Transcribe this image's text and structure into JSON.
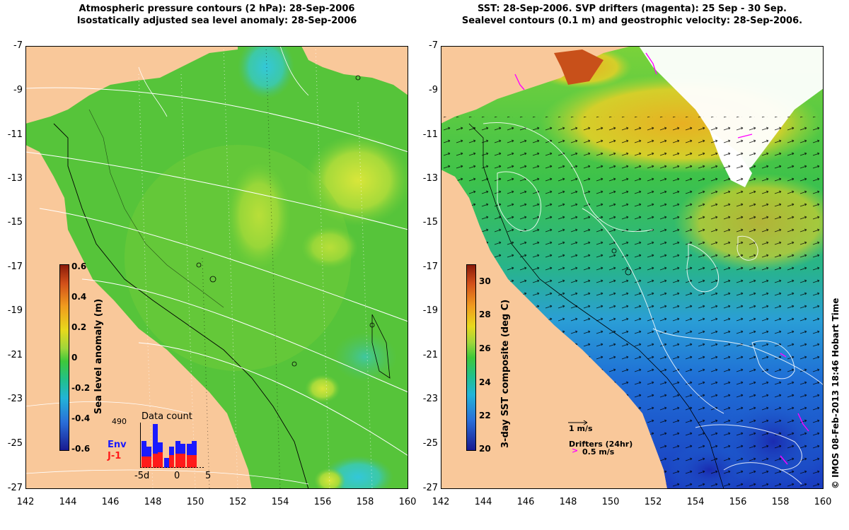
{
  "left_panel": {
    "title_line1": "Atmospheric pressure contours (2 hPa): 28-Sep-2006",
    "title_line2": "Isostatically adjusted sea level anomaly: 28-Sep-2006",
    "y_ticks": [
      "-7",
      "-9",
      "-11",
      "-13",
      "-15",
      "-17",
      "-19",
      "-21",
      "-23",
      "-25",
      "-27"
    ],
    "x_ticks": [
      "142",
      "144",
      "146",
      "148",
      "150",
      "152",
      "154",
      "156",
      "158",
      "160"
    ],
    "colorbar": {
      "label": "Sea level anomaly (m)",
      "ticks": [
        "0.6",
        "0.4",
        "0.2",
        "0",
        "-0.2",
        "-0.4",
        "-0.6"
      ],
      "range": [
        -0.6,
        0.6
      ]
    },
    "data_count": {
      "title": "Data count",
      "max_label": "490",
      "series": [
        {
          "name": "Env",
          "color": "#1a1aff"
        },
        {
          "name": "J-1",
          "color": "#ff1a1a"
        }
      ],
      "x_ticks": [
        "-5d",
        "0",
        "5"
      ]
    }
  },
  "right_panel": {
    "title_line1": "SST: 28-Sep-2006. SVP drifters (magenta): 25 Sep - 30 Sep.",
    "title_line2": "Sealevel contours (0.1 m) and geostrophic velocity: 28-Sep-2006.",
    "y_ticks": [
      "-7",
      "-9",
      "-11",
      "-13",
      "-15",
      "-17",
      "-19",
      "-21",
      "-23",
      "-25",
      "-27"
    ],
    "x_ticks": [
      "142",
      "144",
      "146",
      "148",
      "150",
      "152",
      "154",
      "156",
      "158",
      "160"
    ],
    "colorbar": {
      "label": "3-day SST composite (deg C)",
      "ticks": [
        "30",
        "28",
        "26",
        "24",
        "22",
        "20"
      ],
      "range": [
        20,
        31
      ]
    },
    "velocity_legend": "1 m/s",
    "drifters_legend": "Drifters (24hr)",
    "drifters_speed": "0.5 m/s"
  },
  "credit": "© IMOS 08-Feb-2013 18:46 Hobart Time",
  "colors": {
    "land": "#f9c89a",
    "ocean_green": "#4cc235",
    "ocean_blue": "#1f6fd6",
    "drifter": "#ff00ff"
  }
}
